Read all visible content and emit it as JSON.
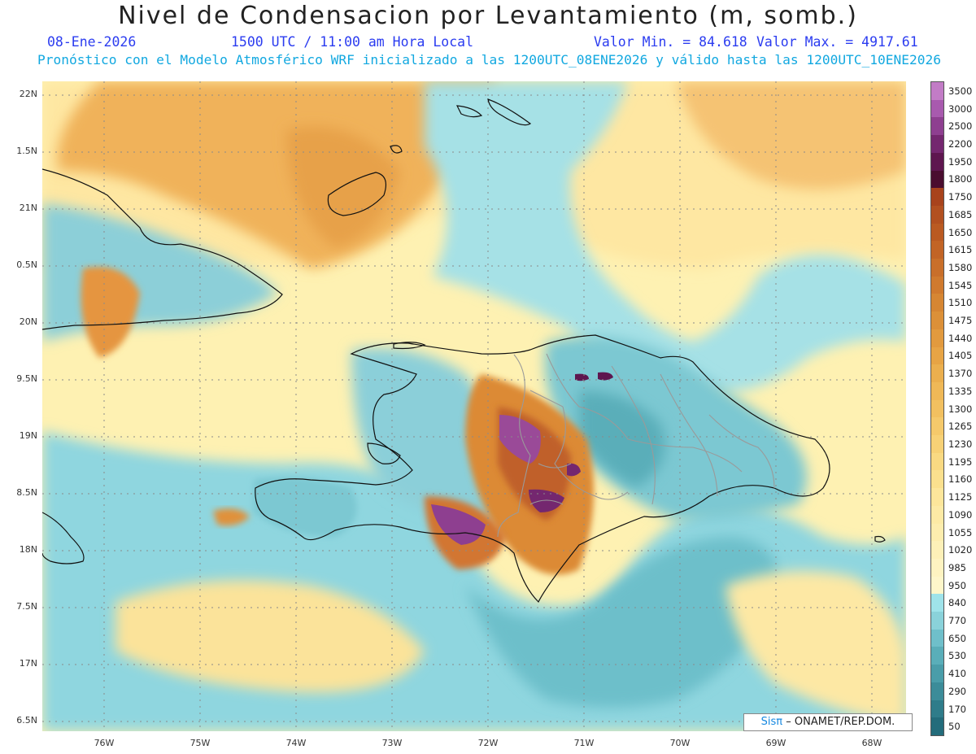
{
  "header": {
    "title": "Nivel de Condensacion por Levantamiento (m, somb.)",
    "date": "08-Ene-2026",
    "time": "1500 UTC / 11:00 am Hora Local",
    "min_label": "Valor Min. = 84.618",
    "max_label": "Valor Max. = 4917.61",
    "subtitle": "Pronóstico con el Modelo Atmosférico WRF inicializado a las 1200UTC_08ENE2026 y válido hasta las  1200UTC_10ENE2026"
  },
  "axes": {
    "lat_labels": [
      "22N",
      "1.5N",
      "21N",
      "0.5N",
      "20N",
      "9.5N",
      "19N",
      "8.5N",
      "18N",
      "7.5N",
      "17N",
      "6.5N"
    ],
    "lon_labels": [
      "76W",
      "75W",
      "74W",
      "73W",
      "72W",
      "71W",
      "70W",
      "69W",
      "68W"
    ]
  },
  "legend": {
    "levels": [
      "3500",
      "3000",
      "2500",
      "2200",
      "1950",
      "1800",
      "1750",
      "1685",
      "1650",
      "1615",
      "1580",
      "1545",
      "1510",
      "1475",
      "1440",
      "1405",
      "1370",
      "1335",
      "1300",
      "1265",
      "1230",
      "1195",
      "1160",
      "1125",
      "1090",
      "1055",
      "1020",
      "985",
      "950",
      "840",
      "770",
      "650",
      "530",
      "410",
      "290",
      "170",
      "50"
    ],
    "colors": [
      "#c27cc6",
      "#a85aae",
      "#8e3f90",
      "#74276f",
      "#5e164f",
      "#4a0d2f",
      "#a8431c",
      "#b25020",
      "#ba5a22",
      "#c26426",
      "#c96f2a",
      "#d07a2e",
      "#d68633",
      "#dc9038",
      "#e29a3e",
      "#e7a445",
      "#ebaf4e",
      "#efb857",
      "#f2c060",
      "#f5c96b",
      "#f7d176",
      "#f9d982",
      "#fbe08e",
      "#fde69b",
      "#fdeaa5",
      "#fdedae",
      "#fdf0b8",
      "#fef3c1",
      "#fef6ca",
      "#9fe3ea",
      "#8ad2da",
      "#6fbfca",
      "#5aaeb9",
      "#4a9da9",
      "#3c8c99",
      "#2f7c8a",
      "#236c7b"
    ]
  },
  "credit": {
    "brand": "Sisπ",
    "org": "– ONAMET/REP.DOM."
  }
}
